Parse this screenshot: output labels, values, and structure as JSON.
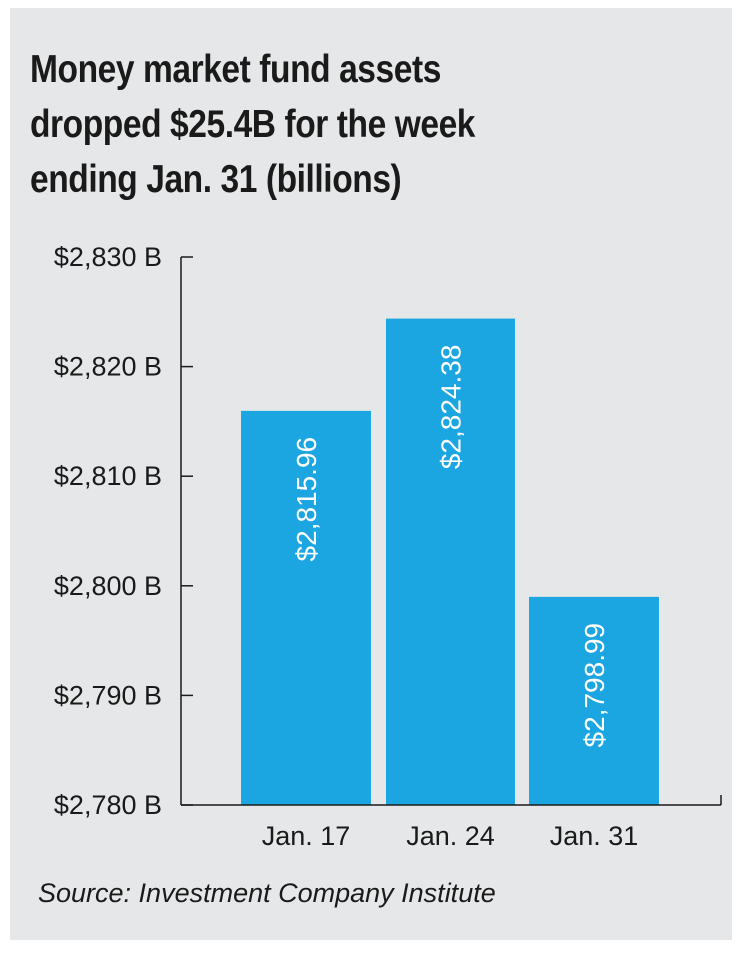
{
  "chart_data": {
    "type": "bar",
    "title": "Money market fund assets dropped $25.4B for the week ending Jan. 31 (billions)",
    "categories": [
      "Jan. 17",
      "Jan. 24",
      "Jan. 31"
    ],
    "values": [
      2815.96,
      2824.38,
      2798.99
    ],
    "value_labels": [
      "$2,815.96",
      "$2,824.38",
      "$2,798.99"
    ],
    "ylim": [
      2780,
      2830
    ],
    "yticks": [
      2780,
      2790,
      2800,
      2810,
      2820,
      2830
    ],
    "ytick_labels": [
      "$2,780 B",
      "$2,790 B",
      "$2,800 B",
      "$2,810 B",
      "$2,820 B",
      "$2,830 B"
    ],
    "bar_color": "#1ba6e2",
    "grid": false,
    "legend": "none"
  },
  "title_lines": [
    "Money market fund assets",
    "dropped $25.4B for the week",
    "ending Jan. 31 (billions)"
  ],
  "source": "Source: Investment Company Institute",
  "colors": {
    "background": "#e6e7e8",
    "text": "#1a1a1a",
    "bar": "#1ba6e2"
  }
}
